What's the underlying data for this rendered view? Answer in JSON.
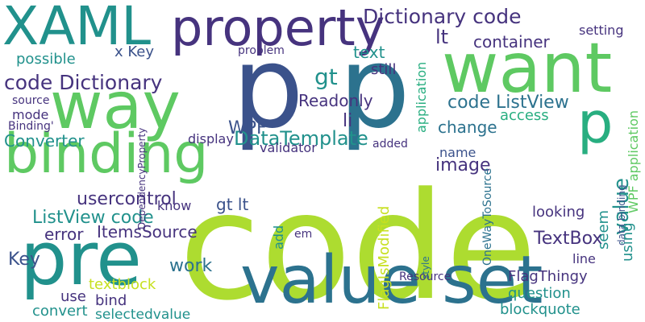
{
  "palette": {
    "background": "#ffffff",
    "dark_purple": "#46337e",
    "indigo": "#3b528b",
    "blue": "#2c728e",
    "teal": "#21918c",
    "green_teal": "#28ae80",
    "green": "#5ec962",
    "lime": "#addc30",
    "yellow_green": "#c7e020",
    "dark": "#440154"
  },
  "words": [
    "code",
    "p",
    "p",
    "value set",
    "want",
    "way",
    "pre",
    "binding",
    "XAML",
    "property",
    "Dictionary code",
    "code Dictionary",
    "code ListView",
    "gt",
    "lt",
    "x Key",
    "TextBox",
    "DataTemplate",
    "WPF",
    "li",
    "Converter",
    "ListView code",
    "usercontrol",
    "error",
    "Key",
    "ItemsSource",
    "work",
    "value",
    "blockquote",
    "question",
    "FlagIsModified",
    "Readonly",
    "validator",
    "image",
    "change",
    "name",
    "textblock",
    "selectedvalue",
    "convert",
    "bind",
    "text",
    "container",
    "setting",
    "application",
    "WPF application",
    "data binding",
    "OneWayToSource",
    "gt lt",
    "FlagThingy",
    "possible",
    "still",
    "problem",
    "display",
    "use",
    "mode",
    "seem",
    "using",
    "looking",
    "line",
    "Resource",
    "added",
    "know",
    "access",
    "em",
    "Binding'",
    "source",
    "DependencyProperty",
    "add",
    "style"
  ]
}
